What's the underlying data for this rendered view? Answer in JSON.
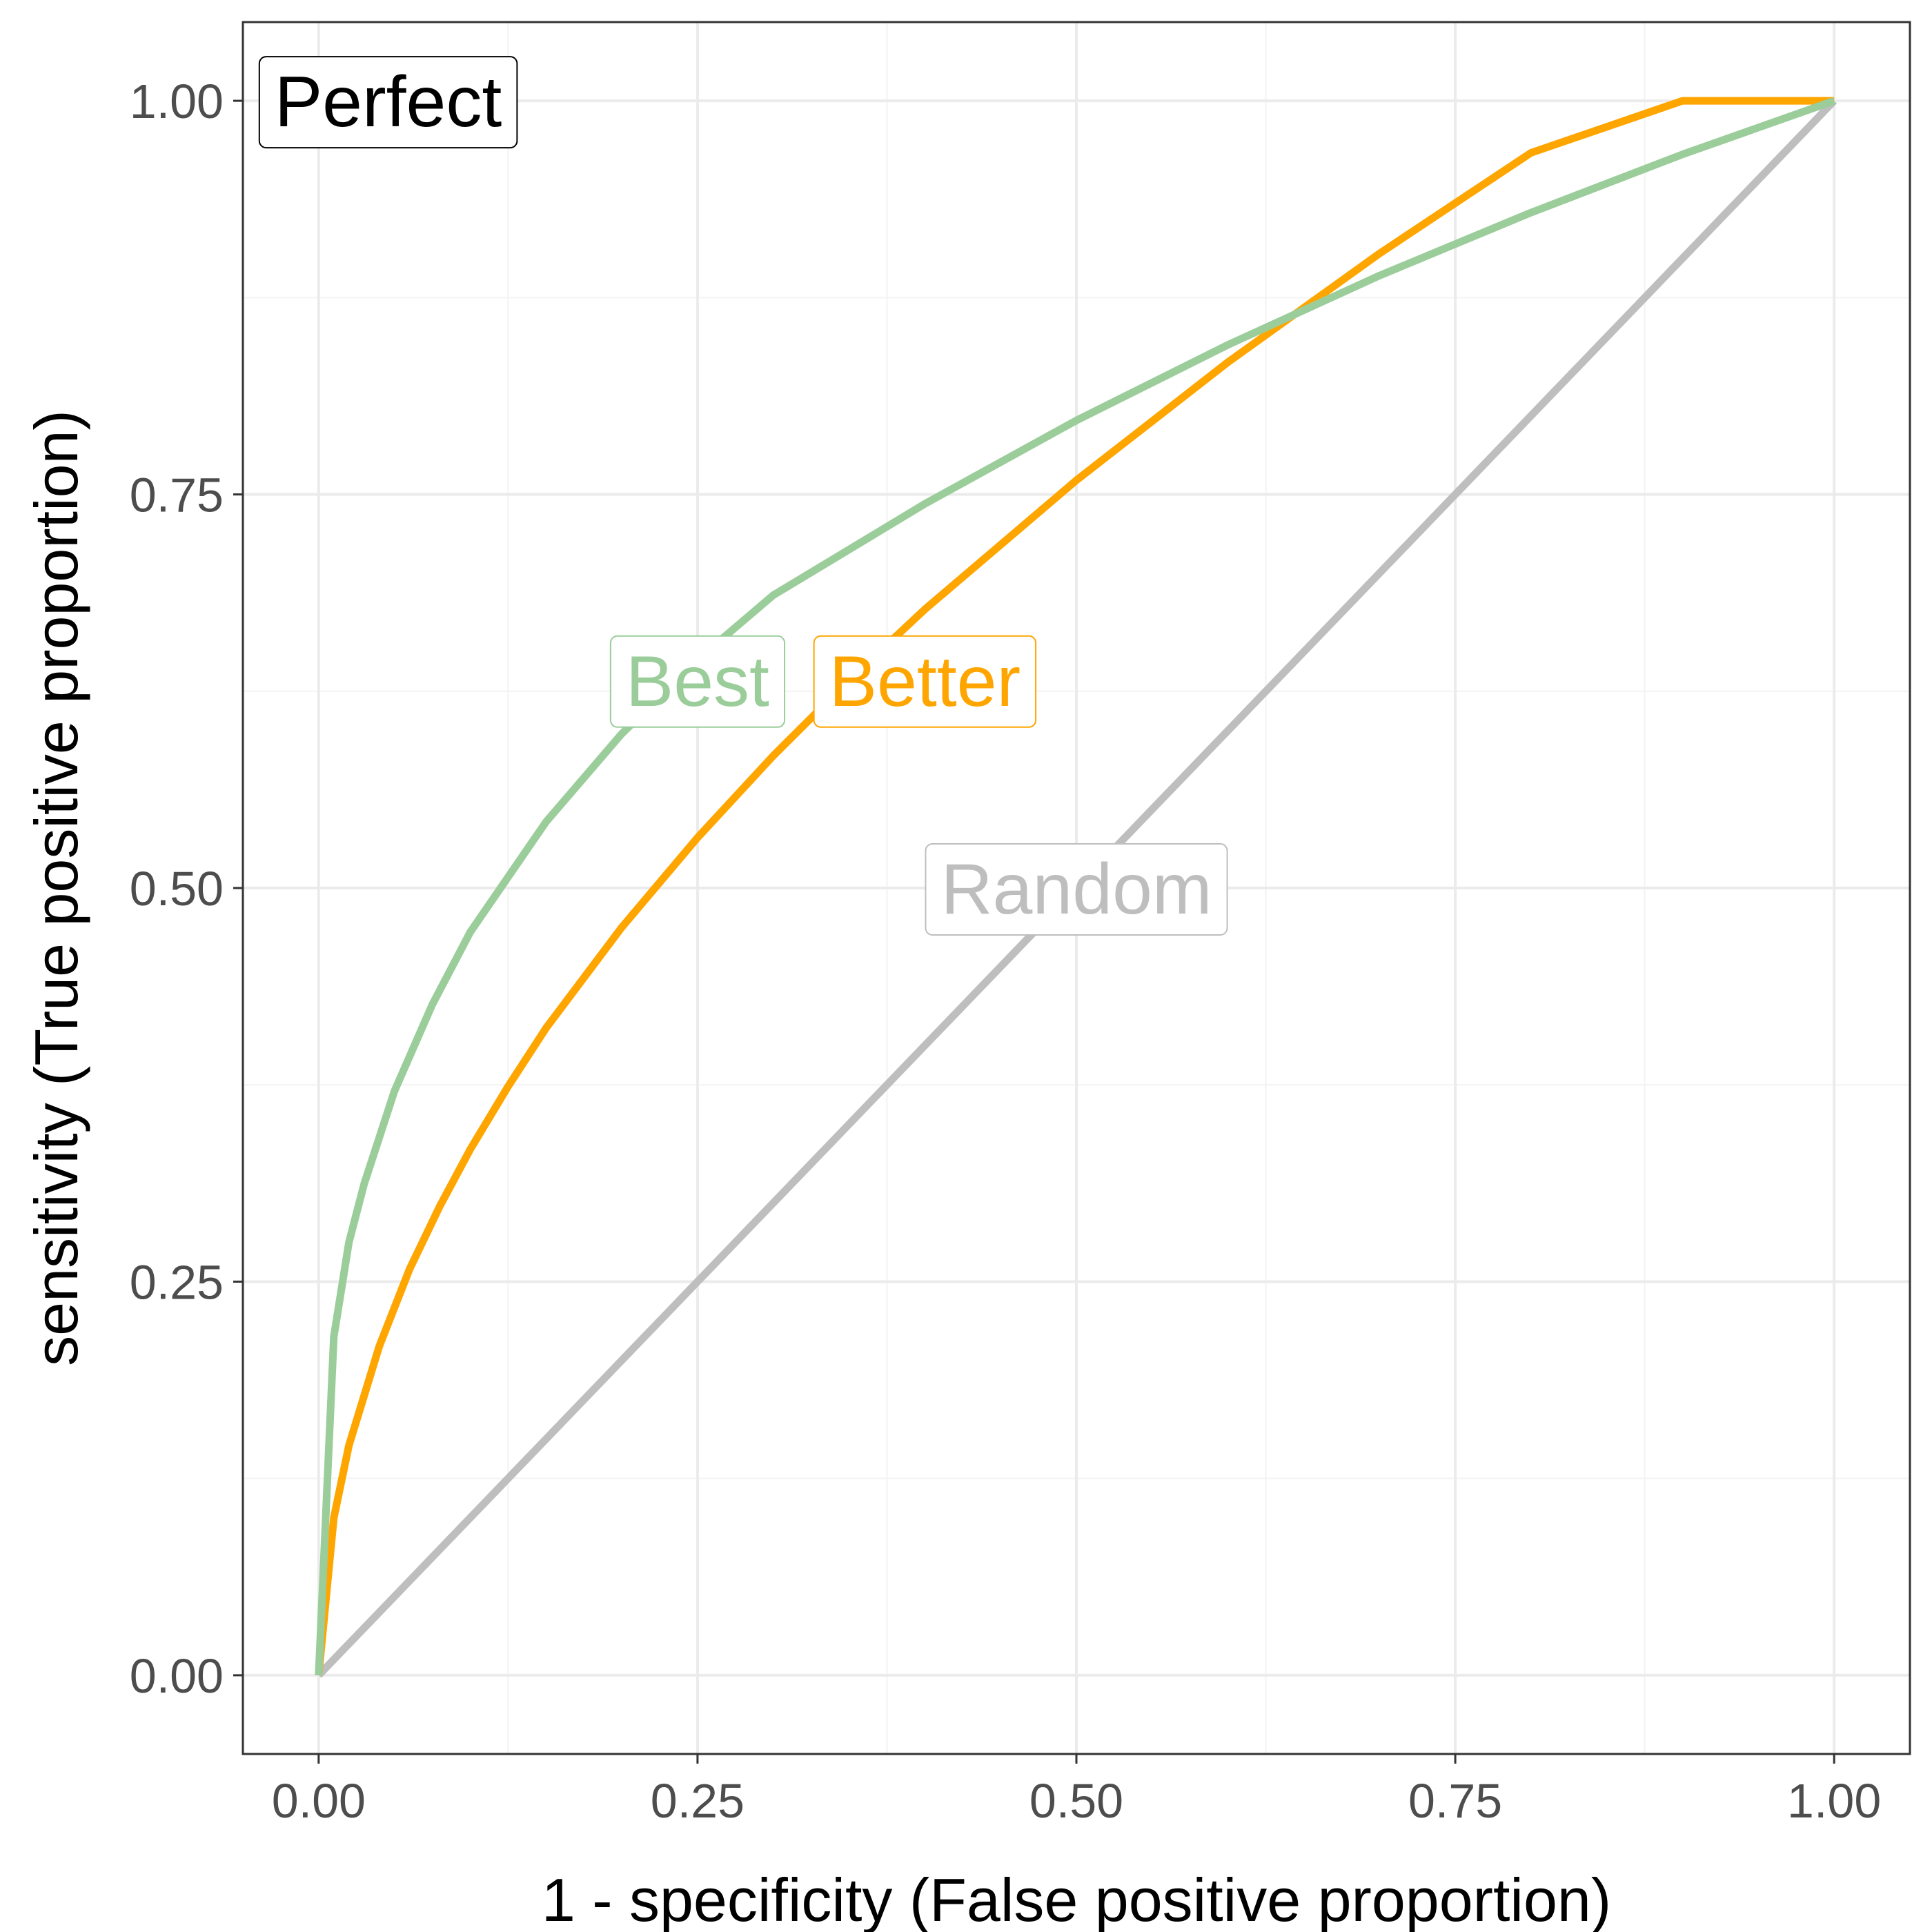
{
  "chart_data": {
    "type": "line",
    "title": "",
    "xlabel": "1 - specificity (False positive proportion)",
    "ylabel": "sensitivity (True positive proportion)",
    "xlim": [
      -0.05,
      1.05
    ],
    "ylim": [
      -0.05,
      1.05
    ],
    "grid": true,
    "x_ticks": [
      0,
      0.25,
      0.5,
      0.75,
      1
    ],
    "y_ticks": [
      0,
      0.25,
      0.5,
      0.75,
      1
    ],
    "x_tick_labels": [
      "0.00",
      "0.25",
      "0.50",
      "0.75",
      "1.00"
    ],
    "y_tick_labels": [
      "0.00",
      "0.25",
      "0.50",
      "0.75",
      "1.00"
    ],
    "series": [
      {
        "name": "Random",
        "color": "#bebebe",
        "x": [
          0,
          1
        ],
        "y": [
          0,
          1
        ]
      },
      {
        "name": "Better",
        "color": "#ffa500",
        "x": [
          0,
          0.01,
          0.02,
          0.04,
          0.06,
          0.08,
          0.1,
          0.125,
          0.15,
          0.2,
          0.25,
          0.3,
          0.35,
          0.4,
          0.5,
          0.6,
          0.7,
          0.8,
          0.9,
          1
        ],
        "y": [
          0,
          0.1,
          0.146,
          0.209,
          0.258,
          0.298,
          0.334,
          0.374,
          0.411,
          0.475,
          0.532,
          0.584,
          0.632,
          0.677,
          0.759,
          0.834,
          0.903,
          0.967,
          1.0,
          1
        ]
      },
      {
        "name": "Best",
        "color": "#9acd9a",
        "x": [
          0,
          0.01,
          0.02,
          0.03,
          0.05,
          0.075,
          0.1,
          0.15,
          0.2,
          0.25,
          0.3,
          0.4,
          0.5,
          0.6,
          0.7,
          0.8,
          0.9,
          1
        ],
        "y": [
          0,
          0.215,
          0.275,
          0.312,
          0.371,
          0.426,
          0.472,
          0.542,
          0.598,
          0.645,
          0.686,
          0.744,
          0.797,
          0.845,
          0.889,
          0.929,
          0.966,
          1
        ]
      }
    ],
    "annotations": [
      {
        "text": "Perfect",
        "x": 0,
        "y": 1,
        "color": "#000000",
        "anchor": "left"
      },
      {
        "text": "Best",
        "x": 0.25,
        "y": 0.632,
        "color": "#9acd9a",
        "anchor": "center"
      },
      {
        "text": "Better",
        "x": 0.4,
        "y": 0.632,
        "color": "#ffa500",
        "anchor": "center"
      },
      {
        "text": "Random",
        "x": 0.5,
        "y": 0.5,
        "color": "#bebebe",
        "anchor": "center"
      }
    ]
  }
}
